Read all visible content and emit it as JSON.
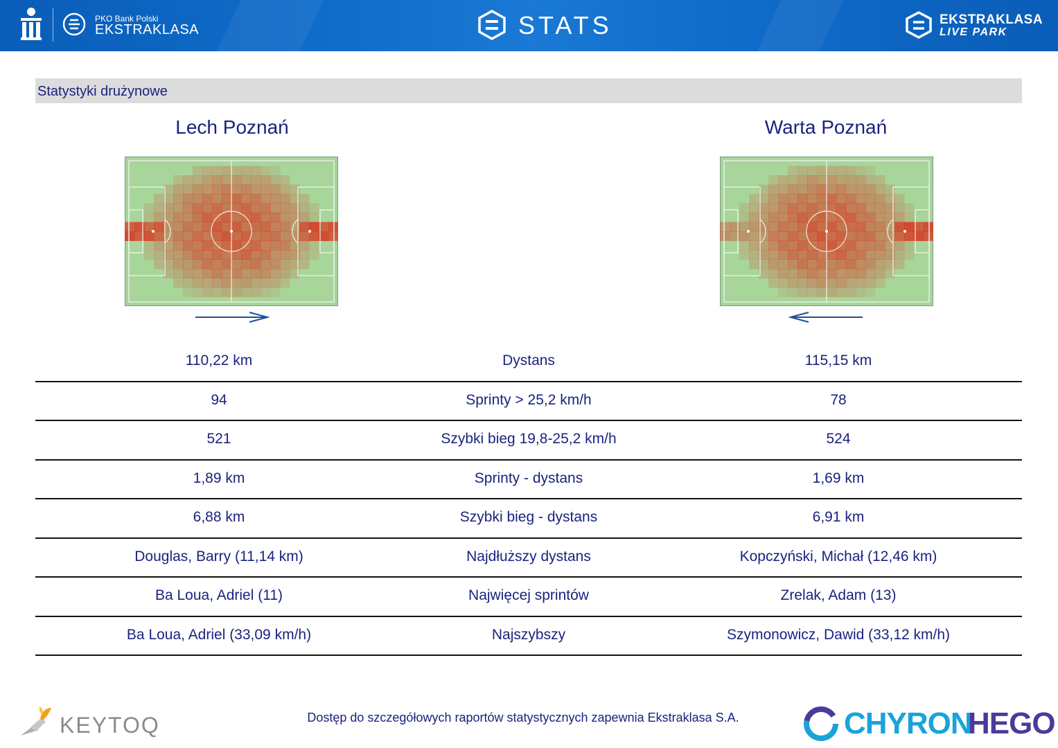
{
  "header": {
    "league_sub": "PKO Bank Polski",
    "league_name": "EKSTRAKLASA",
    "title": "STATS",
    "partner_top": "EKSTRAKLASA",
    "partner_bottom": "LIVE PARK"
  },
  "section": {
    "title": "Statystyki drużynowe"
  },
  "teams": {
    "home": {
      "name": "Lech Poznań",
      "attack_direction": "right"
    },
    "away": {
      "name": "Warta Poznań",
      "attack_direction": "left"
    }
  },
  "stats": [
    {
      "home": "110,22 km",
      "label": "Dystans",
      "away": "115,15 km"
    },
    {
      "home": "94",
      "label": "Sprinty > 25,2 km/h",
      "away": "78"
    },
    {
      "home": "521",
      "label": "Szybki bieg 19,8-25,2 km/h",
      "away": "524"
    },
    {
      "home": "1,89 km",
      "label": "Sprinty - dystans",
      "away": "1,69 km"
    },
    {
      "home": "6,88 km",
      "label": "Szybki bieg - dystans",
      "away": "6,91 km"
    },
    {
      "home": "Douglas, Barry (11,14 km)",
      "label": "Najdłuższy dystans",
      "away": "Kopczyński, Michał (12,46 km)"
    },
    {
      "home": "Ba Loua, Adriel (11)",
      "label": "Najwięcej sprintów",
      "away": "Zrelak, Adam (13)"
    },
    {
      "home": "Ba Loua, Adriel (33,09 km/h)",
      "label": "Najszybszy",
      "away": "Szymonowicz, Dawid (33,12 km/h)"
    }
  ],
  "footer": {
    "left_brand": "KEYTOQ",
    "note": "Dostęp do szczegółowych raportów statystycznych zapewnia Ekstraklasa S.A.",
    "right_brand_a": "CHYRON",
    "right_brand_b": "HEGO"
  },
  "colors": {
    "header_blue": "#0f6cc9",
    "text_navy": "#1a237e",
    "pitch_green": "#a8d59a",
    "heat_red": "#d9321c",
    "arrow_blue": "#1f4e9c"
  }
}
